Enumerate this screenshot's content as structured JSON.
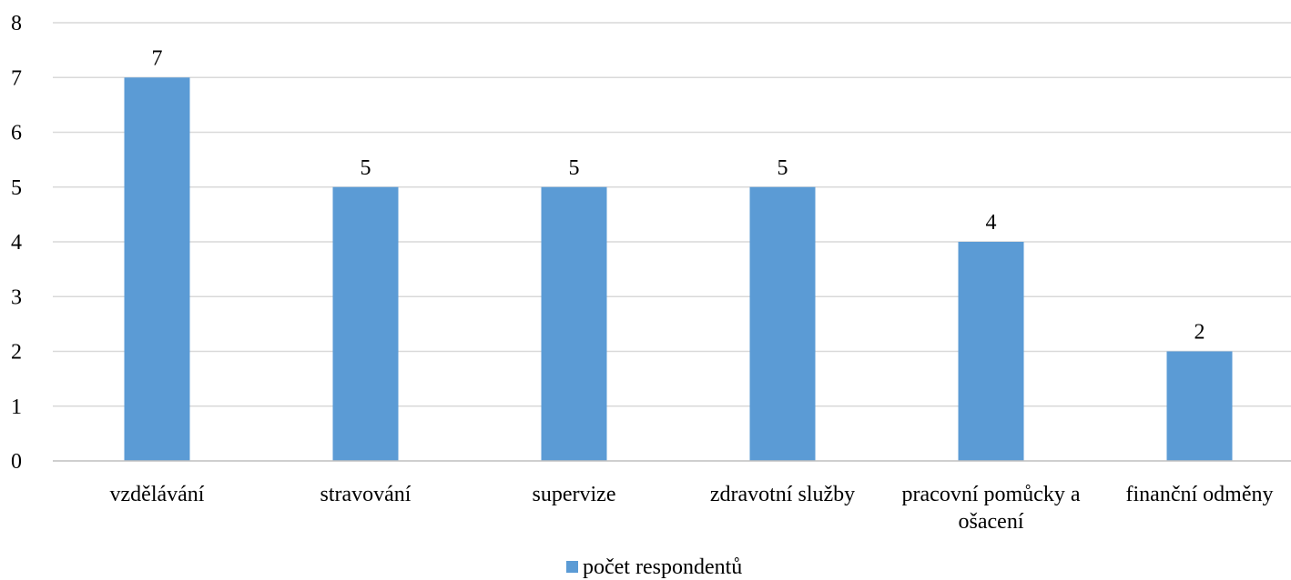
{
  "chart_data": {
    "type": "bar",
    "categories": [
      [
        "vzdělávání"
      ],
      [
        "stravování"
      ],
      [
        "supervize"
      ],
      [
        "zdravotní služby"
      ],
      [
        "pracovní pomůcky a",
        "ošacení"
      ],
      [
        "finanční odměny"
      ]
    ],
    "series": [
      {
        "name": "počet respondentů",
        "values": [
          7,
          5,
          5,
          5,
          4,
          2
        ],
        "color": "#5b9bd5"
      }
    ],
    "ylim": [
      0,
      8
    ],
    "yticks": [
      0,
      1,
      2,
      3,
      4,
      5,
      6,
      7,
      8
    ],
    "grid": true,
    "data_labels": true,
    "legend_position": "bottom-center",
    "title": "",
    "xlabel": "",
    "ylabel": ""
  },
  "colors": {
    "bar": "#5b9bd5",
    "gridline": "#d9d9d9",
    "axis": "#bfbfbf",
    "text": "#000000"
  }
}
